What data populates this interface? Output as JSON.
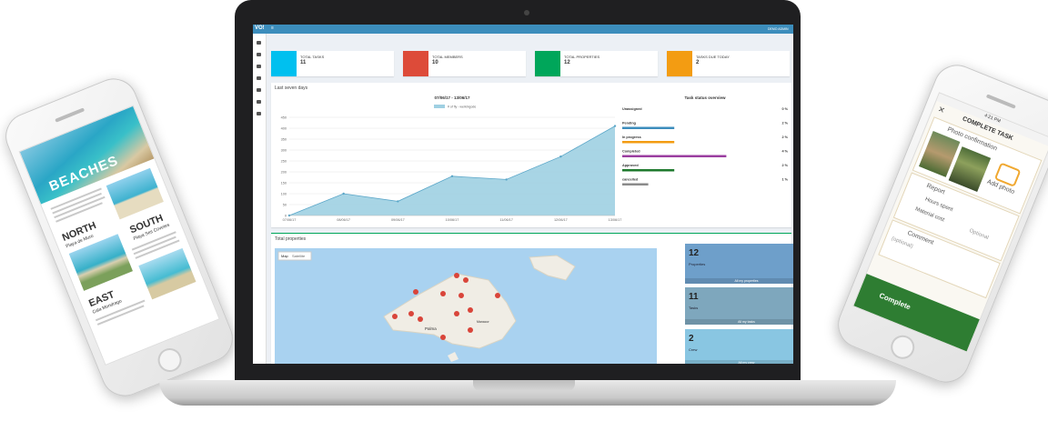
{
  "left_phone": {
    "banner": "BEACHES",
    "sections": [
      {
        "title": "NORTH",
        "subtitle": "Playa de Muro"
      },
      {
        "title": "SOUTH",
        "subtitle": "Playa Ses Covetes"
      },
      {
        "title": "EAST",
        "subtitle": "Cala Mondrago"
      }
    ]
  },
  "dashboard": {
    "brand": "VO!",
    "user": "DEMO ADMIN",
    "stats": [
      {
        "label": "TOTAL TASKS",
        "value": 11
      },
      {
        "label": "TOTAL MEMBERS",
        "value": 10
      },
      {
        "label": "TOTAL PROPERTIES",
        "value": 12
      },
      {
        "label": "TASKS DUE TODAY",
        "value": 2
      }
    ],
    "panels": {
      "activity": "Last seven days",
      "properties": "Total properties"
    },
    "chart_data": {
      "type": "area",
      "title": "07/06/17 - 13/06/17",
      "categories": [
        "07/06/17",
        "08/06/17",
        "09/06/17",
        "10/06/17",
        "11/06/17",
        "12/06/17",
        "13/06/17"
      ],
      "series": [
        {
          "name": "# of fly - werkingode",
          "color": "#9fd0e2",
          "values": [
            0,
            100,
            65,
            180,
            165,
            270,
            410
          ]
        }
      ],
      "ylim": [
        0,
        450
      ],
      "yticks": [
        0,
        50,
        100,
        150,
        200,
        250,
        300,
        350,
        400,
        450
      ],
      "grid": true
    },
    "task_status": {
      "title": "Task status overview",
      "rows": [
        {
          "label": "Unassigned",
          "value": 0,
          "value_label": "0 %",
          "color": "#3c8dbc"
        },
        {
          "label": "Pending",
          "value": 2,
          "value_label": "2 %",
          "color": "#3c8dbc"
        },
        {
          "label": "In progress",
          "value": 2,
          "value_label": "2 %",
          "color": "#f39c12"
        },
        {
          "label": "Completed",
          "value": 4,
          "value_label": "4 %",
          "color": "#9b3ea0"
        },
        {
          "label": "Approved",
          "value": 2,
          "value_label": "2 %",
          "color": "#1f7a2e"
        },
        {
          "label": "cancelled",
          "value": 1,
          "value_label": "1 %",
          "color": "#8a8a8a"
        }
      ]
    },
    "map": {
      "tabs": [
        "Map",
        "Satellite"
      ],
      "places": [
        "Palma",
        "Manacor"
      ]
    },
    "cards": [
      {
        "value": 12,
        "label": "Properties",
        "link": "All my properties"
      },
      {
        "value": 11,
        "label": "Tasks",
        "link": "All my tasks"
      },
      {
        "value": 2,
        "label": "Crew",
        "link": "All my crew"
      }
    ]
  },
  "right_phone": {
    "time": "4:21 PM",
    "title": "COMPLETE TASK",
    "photo_section": "Photo confirmation",
    "add_photo": "Add photo",
    "report": "Report",
    "hours": "Hours spent",
    "material": "Material cost",
    "optional": "Optional",
    "comment": "Comment",
    "comment_placeholder": "(optional)",
    "button": "Complete"
  }
}
